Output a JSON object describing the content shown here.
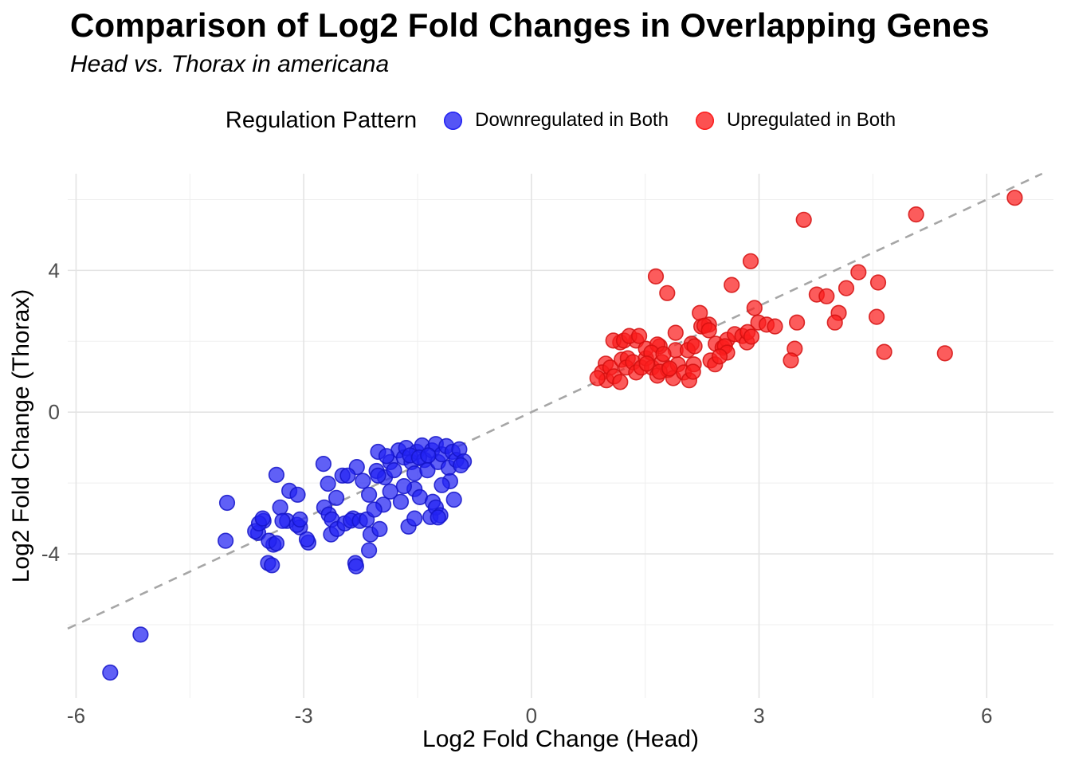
{
  "page": {
    "title": "Comparison of Log2 Fold Changes in Overlapping Genes",
    "subtitle": "Head vs. Thorax in americana"
  },
  "legend": {
    "title": "Regulation Pattern",
    "items": [
      {
        "label": "Downregulated in Both",
        "color": "#2222F2"
      },
      {
        "label": "Upregulated in Both",
        "color": "#FB1D1D"
      }
    ]
  },
  "chart_data": {
    "type": "scatter",
    "title": "Comparison of Log2 Fold Changes in Overlapping Genes",
    "subtitle": "Head vs. Thorax in americana",
    "xlabel": "Log2 Fold Change (Head)",
    "ylabel": "Log2 Fold Change (Thorax)",
    "xlim": [
      -6.11,
      6.88
    ],
    "ylim": [
      -8.07,
      6.73
    ],
    "grid": "on",
    "legend_position": "top",
    "x_ticks": {
      "values": [
        -6,
        -3,
        0,
        3,
        6
      ],
      "labels": [
        "-6",
        "-3",
        "0",
        "3",
        "6"
      ]
    },
    "y_ticks": {
      "values": [
        -4,
        0,
        4
      ],
      "labels": [
        "-4",
        "0",
        "4"
      ]
    },
    "x_minor_ticks": [
      -4.5,
      -1.5,
      1.5,
      4.5
    ],
    "y_minor_ticks": [
      -6,
      -2,
      2,
      6
    ],
    "identity_line": {
      "equation": "y = x",
      "style": "dashed",
      "color": "#A6A6A6",
      "x_start": -6.11,
      "x_end": 6.73
    },
    "grid_colors": {
      "major": "#E3E3E3",
      "minor": "#EFEFEF"
    },
    "tick_label_color": "#4D4D4D",
    "point_style": {
      "radius": 9.3,
      "fill_opacity": 0.72,
      "stroke_opacity": 0.85
    },
    "series": [
      {
        "name": "Downregulated in Both",
        "color": "#2222F2",
        "stroke": "#1414C8",
        "points": [
          [
            -4.01,
            -2.56
          ],
          [
            -4.03,
            -3.63
          ],
          [
            -3.36,
            -1.77
          ],
          [
            -3.19,
            -2.22
          ],
          [
            -3.08,
            -2.33
          ],
          [
            -3.31,
            -2.69
          ],
          [
            -3.53,
            -3.07
          ],
          [
            -3.6,
            -3.41
          ],
          [
            -3.4,
            -3.74
          ],
          [
            -3.47,
            -4.26
          ],
          [
            -3.42,
            -4.32
          ],
          [
            -3.22,
            -3.07
          ],
          [
            -3.05,
            -3.25
          ],
          [
            -2.94,
            -3.68
          ],
          [
            -2.74,
            -1.46
          ],
          [
            -2.68,
            -2.02
          ],
          [
            -2.73,
            -2.69
          ],
          [
            -2.64,
            -3.45
          ],
          [
            -2.49,
            -1.79
          ],
          [
            -2.32,
            -4.26
          ],
          [
            -3.64,
            -3.36
          ],
          [
            -3.59,
            -3.14
          ],
          [
            -3.54,
            -3.0
          ],
          [
            -3.46,
            -3.63
          ],
          [
            -3.36,
            -3.7
          ],
          [
            -3.28,
            -3.07
          ],
          [
            -3.09,
            -3.18
          ],
          [
            -3.05,
            -3.03
          ],
          [
            -2.96,
            -3.59
          ],
          [
            -2.67,
            -2.89
          ],
          [
            -2.63,
            -3.03
          ],
          [
            -2.56,
            -3.3
          ],
          [
            -2.46,
            -3.14
          ],
          [
            -2.35,
            -3.0
          ],
          [
            -2.38,
            -3.06
          ],
          [
            -2.26,
            -3.07
          ],
          [
            -2.17,
            -3.03
          ],
          [
            -2.12,
            -3.45
          ],
          [
            -2.14,
            -3.9
          ],
          [
            -2.0,
            -3.3
          ],
          [
            -2.31,
            -4.35
          ],
          [
            -1.62,
            -3.23
          ],
          [
            -1.54,
            -3.0
          ],
          [
            -1.33,
            -2.96
          ],
          [
            -2.02,
            -1.12
          ],
          [
            -2.3,
            -1.55
          ],
          [
            -2.42,
            -1.79
          ],
          [
            -2.04,
            -1.66
          ],
          [
            -1.93,
            -1.84
          ],
          [
            -2.14,
            -2.33
          ],
          [
            -2.02,
            -1.79
          ],
          [
            -1.86,
            -1.41
          ],
          [
            -1.81,
            -1.64
          ],
          [
            -1.75,
            -1.08
          ],
          [
            -1.68,
            -1.28
          ],
          [
            -1.65,
            -1.01
          ],
          [
            -1.58,
            -1.41
          ],
          [
            -1.54,
            -1.73
          ],
          [
            -1.51,
            -1.12
          ],
          [
            -1.44,
            -0.94
          ],
          [
            -1.41,
            -1.35
          ],
          [
            -1.37,
            -1.64
          ],
          [
            -1.31,
            -1.08
          ],
          [
            -1.26,
            -0.9
          ],
          [
            -1.23,
            -1.41
          ],
          [
            -1.18,
            -1.19
          ],
          [
            -1.12,
            -0.96
          ],
          [
            -1.09,
            -1.57
          ],
          [
            -1.04,
            -1.12
          ],
          [
            -0.99,
            -1.35
          ],
          [
            -0.95,
            -1.05
          ],
          [
            -1.07,
            -1.95
          ],
          [
            -1.18,
            -2.06
          ],
          [
            -1.54,
            -2.17
          ],
          [
            -1.68,
            -2.09
          ],
          [
            -1.86,
            -2.24
          ],
          [
            -1.47,
            -2.4
          ],
          [
            -1.3,
            -2.53
          ],
          [
            -1.72,
            -2.53
          ],
          [
            -1.02,
            -2.47
          ],
          [
            -1.26,
            -2.69
          ],
          [
            -1.2,
            -2.91
          ],
          [
            -1.23,
            -2.97
          ],
          [
            -0.89,
            -1.39
          ],
          [
            -0.93,
            -1.5
          ],
          [
            -1.6,
            -1.22
          ],
          [
            -1.48,
            -1.28
          ],
          [
            -1.36,
            -1.22
          ],
          [
            -1.91,
            -1.24
          ],
          [
            -2.22,
            -1.94
          ],
          [
            -2.57,
            -2.42
          ],
          [
            -1.95,
            -2.61
          ],
          [
            -2.07,
            -2.75
          ],
          [
            -5.15,
            -6.28
          ],
          [
            -5.55,
            -7.35
          ]
        ]
      },
      {
        "name": "Upregulated in Both",
        "color": "#FB1D1D",
        "stroke": "#D40F0F",
        "points": [
          [
            0.98,
            1.37
          ],
          [
            0.93,
            1.12
          ],
          [
            0.99,
            0.9
          ],
          [
            1.04,
            1.26
          ],
          [
            1.09,
            1.01
          ],
          [
            1.17,
            0.85
          ],
          [
            1.19,
            1.48
          ],
          [
            1.27,
            1.52
          ],
          [
            1.25,
            1.26
          ],
          [
            1.34,
            1.41
          ],
          [
            1.38,
            1.12
          ],
          [
            1.45,
            1.26
          ],
          [
            1.51,
            1.52
          ],
          [
            1.59,
            1.26
          ],
          [
            1.66,
            1.03
          ],
          [
            1.72,
            1.41
          ],
          [
            1.8,
            1.19
          ],
          [
            1.87,
            0.96
          ],
          [
            1.93,
            1.35
          ],
          [
            2.01,
            1.12
          ],
          [
            2.08,
            0.9
          ],
          [
            2.14,
            1.35
          ],
          [
            1.17,
            1.97
          ],
          [
            1.38,
            2.02
          ],
          [
            1.51,
            1.79
          ],
          [
            1.69,
            1.86
          ],
          [
            1.9,
            1.75
          ],
          [
            2.11,
            1.93
          ],
          [
            1.08,
            2.02
          ],
          [
            1.22,
            2.02
          ],
          [
            1.29,
            2.15
          ],
          [
            1.42,
            2.15
          ],
          [
            1.66,
            1.91
          ],
          [
            1.9,
            2.24
          ],
          [
            1.58,
            1.68
          ],
          [
            1.74,
            1.64
          ],
          [
            1.52,
            1.37
          ],
          [
            1.69,
            1.14
          ],
          [
            1.82,
            1.23
          ],
          [
            2.06,
            1.75
          ],
          [
            2.15,
            1.86
          ],
          [
            2.24,
            2.42
          ],
          [
            2.34,
            2.47
          ],
          [
            2.43,
            1.93
          ],
          [
            2.52,
            1.82
          ],
          [
            2.58,
            2.04
          ],
          [
            2.68,
            2.2
          ],
          [
            2.78,
            2.15
          ],
          [
            2.84,
            1.97
          ],
          [
            2.36,
            1.46
          ],
          [
            2.42,
            1.35
          ],
          [
            2.13,
            1.14
          ],
          [
            0.87,
            0.96
          ],
          [
            1.64,
            3.83
          ],
          [
            1.79,
            3.36
          ],
          [
            2.22,
            2.8
          ],
          [
            2.28,
            2.44
          ],
          [
            2.34,
            2.31
          ],
          [
            2.99,
            2.53
          ],
          [
            2.89,
            4.26
          ],
          [
            2.64,
            3.59
          ],
          [
            2.94,
            2.94
          ],
          [
            2.85,
            2.26
          ],
          [
            2.9,
            2.13
          ],
          [
            2.55,
            1.86
          ],
          [
            2.58,
            1.68
          ],
          [
            2.48,
            1.57
          ],
          [
            3.1,
            2.47
          ],
          [
            3.21,
            2.42
          ],
          [
            3.5,
            2.53
          ],
          [
            3.76,
            3.32
          ],
          [
            3.89,
            3.27
          ],
          [
            4.15,
            3.5
          ],
          [
            4.31,
            3.95
          ],
          [
            4.57,
            3.66
          ],
          [
            4.05,
            2.8
          ],
          [
            4.0,
            2.53
          ],
          [
            4.55,
            2.69
          ],
          [
            4.65,
            1.7
          ],
          [
            3.47,
            1.79
          ],
          [
            3.42,
            1.46
          ],
          [
            3.59,
            5.43
          ],
          [
            5.07,
            5.58
          ],
          [
            6.37,
            6.05
          ],
          [
            5.45,
            1.66
          ]
        ]
      }
    ]
  }
}
